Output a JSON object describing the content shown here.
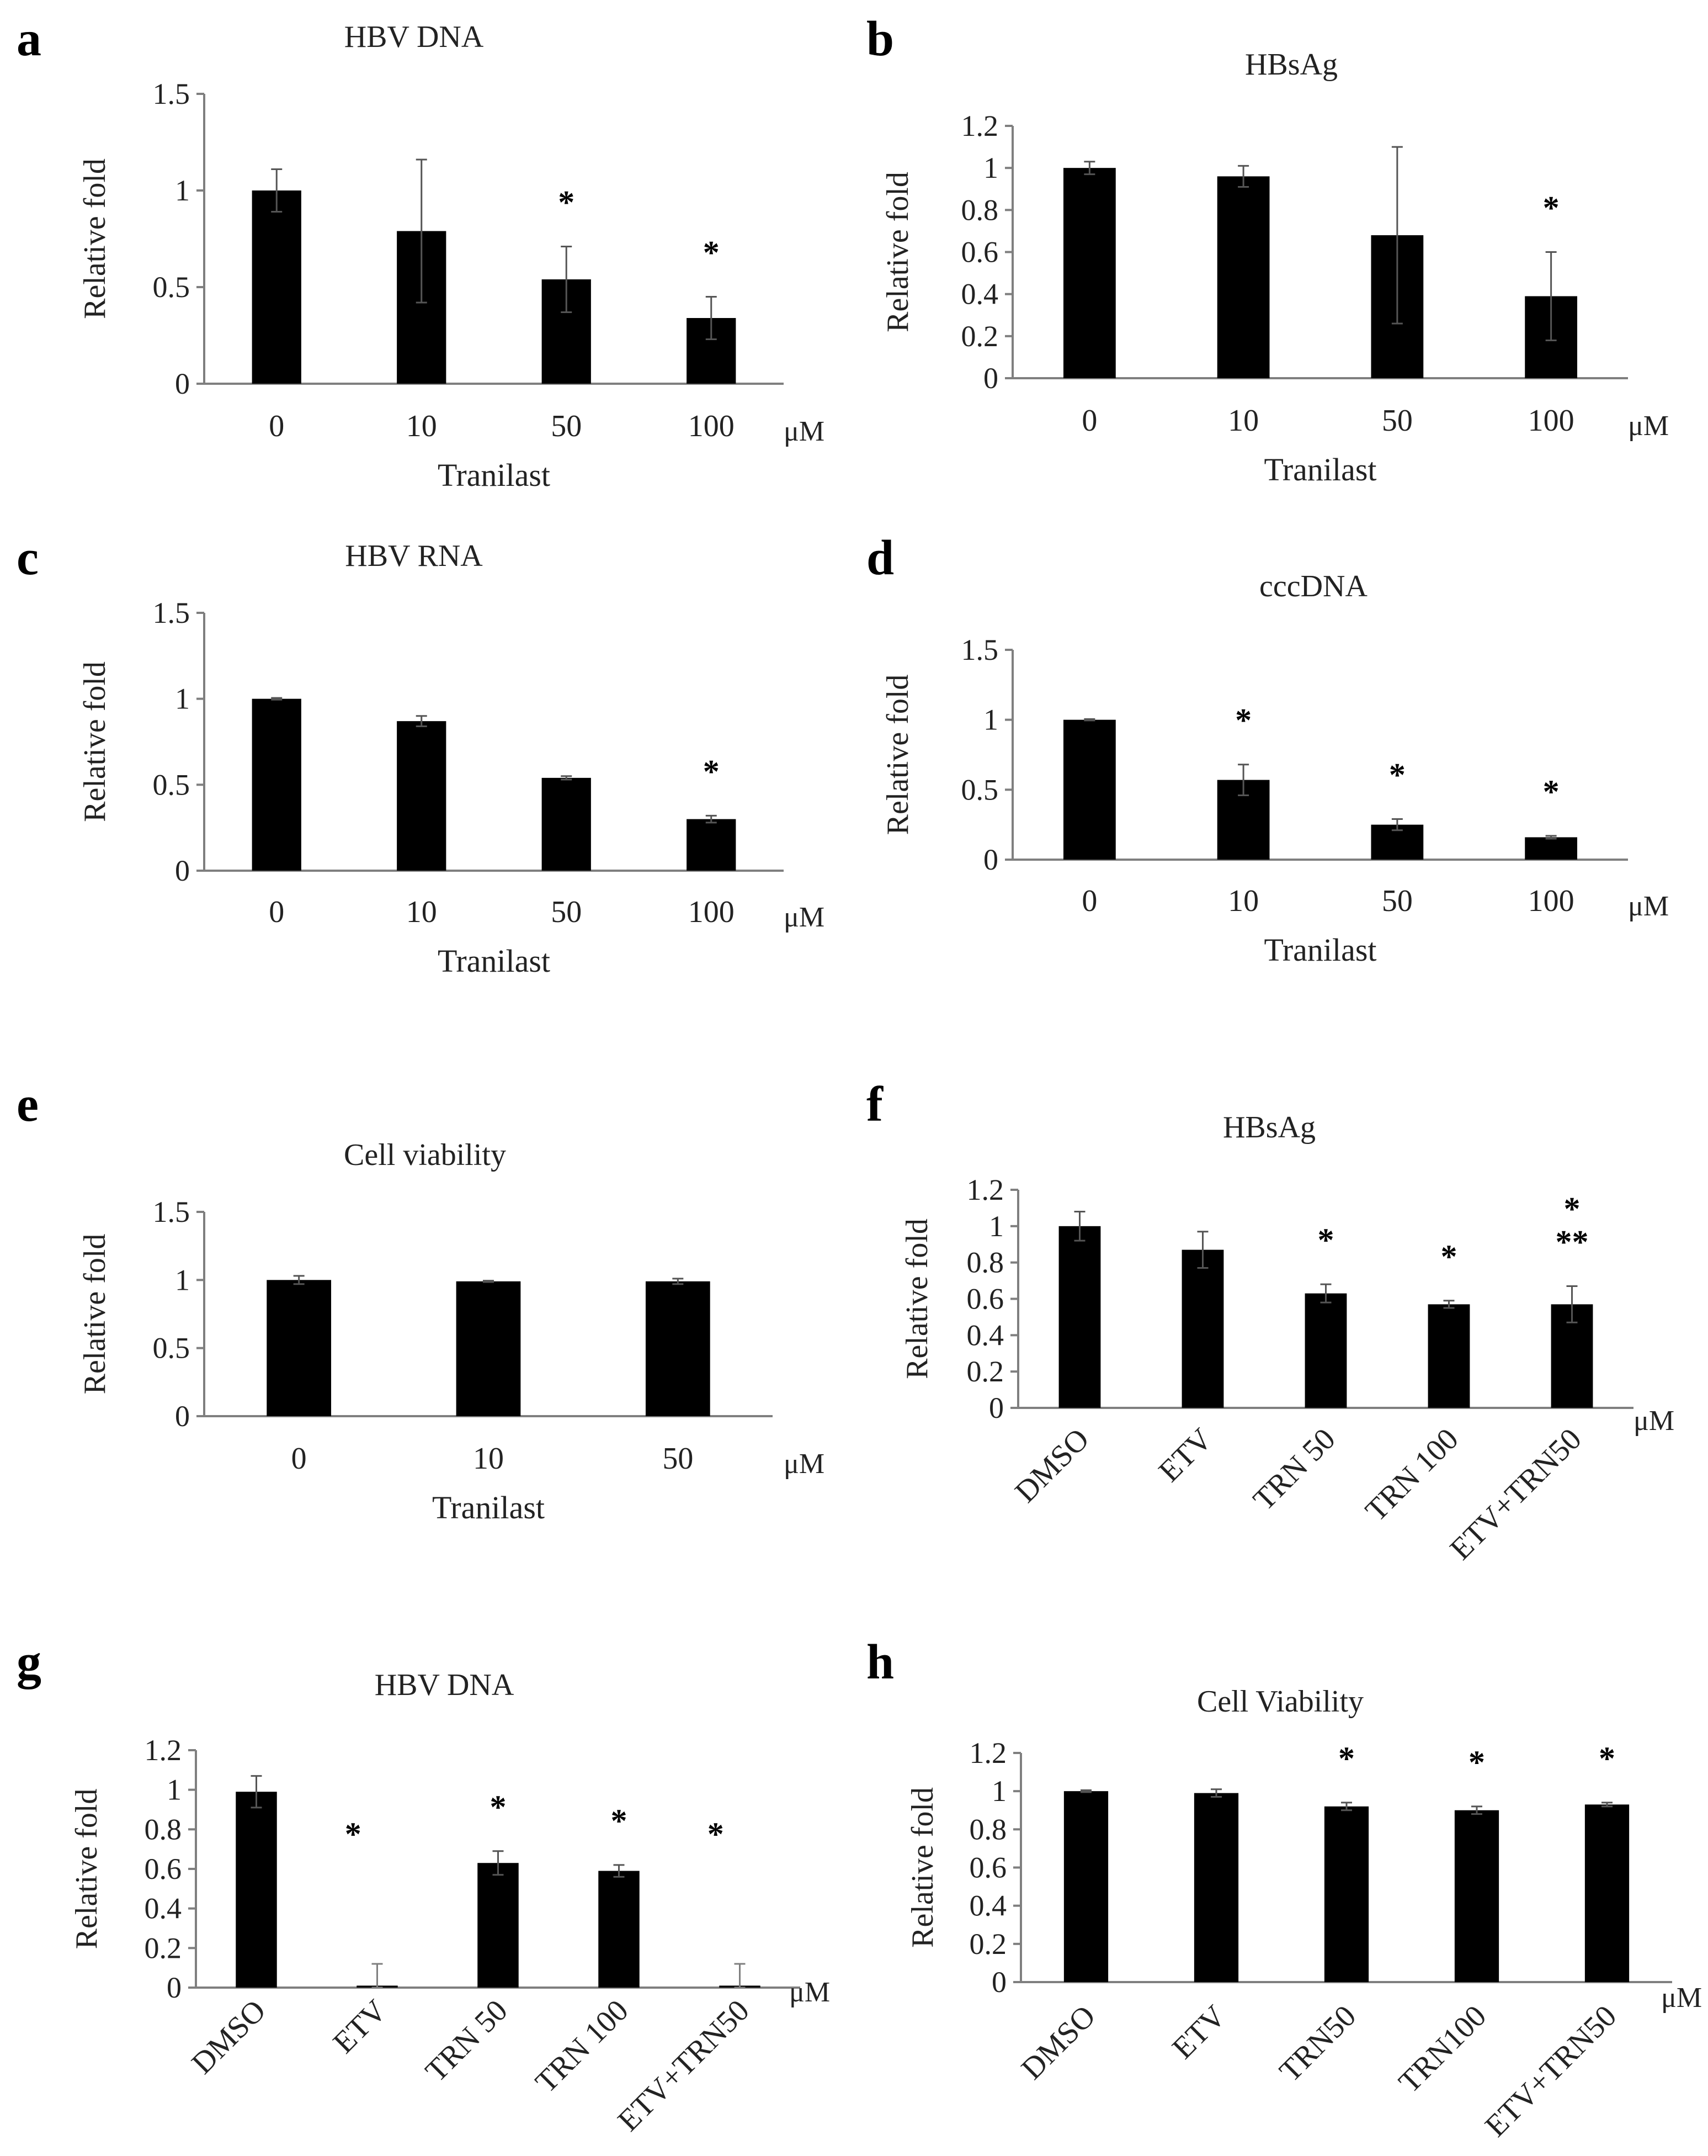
{
  "colors": {
    "bar": "#000000",
    "axis": "#7f7f7f",
    "text": "#222222"
  },
  "chart_data": [
    {
      "panel": "a",
      "type": "bar",
      "title": "HBV DNA",
      "ylabel": "Relative fold",
      "xlabel": "Tranilast",
      "unit": "μM",
      "categories": [
        "0",
        "10",
        "50",
        "100"
      ],
      "values": [
        1.0,
        0.79,
        0.54,
        0.34
      ],
      "errors": [
        0.11,
        0.37,
        0.17,
        0.11
      ],
      "significance": [
        "",
        "",
        "*",
        "*"
      ],
      "ylim": [
        0,
        1.5
      ],
      "yticks": [
        0,
        0.5,
        1,
        1.5
      ],
      "ytick_labels": [
        "0",
        "0.5",
        "1",
        "1.5"
      ]
    },
    {
      "panel": "b",
      "type": "bar",
      "title": "HBsAg",
      "ylabel": "Relative fold",
      "xlabel": "Tranilast",
      "unit": "μM",
      "categories": [
        "0",
        "10",
        "50",
        "100"
      ],
      "values": [
        1.0,
        0.96,
        0.68,
        0.39
      ],
      "errors": [
        0.03,
        0.05,
        0.42,
        0.21
      ],
      "significance": [
        "",
        "",
        "",
        "*"
      ],
      "ylim": [
        0,
        1.2
      ],
      "yticks": [
        0,
        0.2,
        0.4,
        0.6,
        0.8,
        1,
        1.2
      ],
      "ytick_labels": [
        "0",
        "0.2",
        "0.4",
        "0.6",
        "0.8",
        "1",
        "1.2"
      ]
    },
    {
      "panel": "c",
      "type": "bar",
      "title": "HBV RNA",
      "ylabel": "Relative fold",
      "xlabel": "Tranilast",
      "unit": "μM",
      "categories": [
        "0",
        "10",
        "50",
        "100"
      ],
      "values": [
        1.0,
        0.87,
        0.54,
        0.3
      ],
      "errors": [
        0.005,
        0.03,
        0.01,
        0.02
      ],
      "significance": [
        "",
        "",
        "",
        "*"
      ],
      "ylim": [
        0,
        1.5
      ],
      "yticks": [
        0,
        0.5,
        1,
        1.5
      ],
      "ytick_labels": [
        "0",
        "0.5",
        "1",
        "1.5"
      ]
    },
    {
      "panel": "d",
      "type": "bar",
      "title": "cccDNA",
      "ylabel": "Relative fold",
      "xlabel": "Tranilast",
      "unit": "μM",
      "categories": [
        "0",
        "10",
        "50",
        "100"
      ],
      "values": [
        1.0,
        0.57,
        0.25,
        0.16
      ],
      "errors": [
        0.005,
        0.11,
        0.04,
        0.01
      ],
      "significance": [
        "",
        "*",
        "*",
        "*"
      ],
      "ylim": [
        0,
        1.5
      ],
      "yticks": [
        0,
        0.5,
        1,
        1.5
      ],
      "ytick_labels": [
        "0",
        "0.5",
        "1",
        "1.5"
      ]
    },
    {
      "panel": "e",
      "type": "bar",
      "title": "Cell viability",
      "ylabel": "Relative fold",
      "xlabel": "Tranilast",
      "unit": "μM",
      "categories": [
        "0",
        "10",
        "50"
      ],
      "values": [
        1.0,
        0.99,
        0.99
      ],
      "errors": [
        0.03,
        0.005,
        0.02
      ],
      "significance": [
        "",
        "",
        ""
      ],
      "ylim": [
        0,
        1.5
      ],
      "yticks": [
        0,
        0.5,
        1,
        1.5
      ],
      "ytick_labels": [
        "0",
        "0.5",
        "1",
        "1.5"
      ]
    },
    {
      "panel": "f",
      "type": "bar",
      "title": "HBsAg",
      "ylabel": "Relative fold",
      "xlabel": "",
      "unit": "μM",
      "categories": [
        "DMSO",
        "ETV",
        "TRN 50",
        "TRN 100",
        "ETV+TRN50"
      ],
      "values": [
        1.0,
        0.87,
        0.63,
        0.57,
        0.57
      ],
      "errors": [
        0.08,
        0.1,
        0.05,
        0.02,
        0.1
      ],
      "significance": [
        "",
        "",
        "*",
        "*",
        "*\n**"
      ],
      "ylim": [
        0,
        1.2
      ],
      "yticks": [
        0,
        0.2,
        0.4,
        0.6,
        0.8,
        1,
        1.2
      ],
      "ytick_labels": [
        "0",
        "0.2",
        "0.4",
        "0.6",
        "0.8",
        "1",
        "1.2"
      ]
    },
    {
      "panel": "g",
      "type": "bar",
      "title": "HBV DNA",
      "ylabel": "Relative fold",
      "xlabel": "",
      "unit": "μM",
      "categories": [
        "DMSO",
        "ETV",
        "TRN 50",
        "TRN 100",
        "ETV+TRN50"
      ],
      "values": [
        0.99,
        0.01,
        0.63,
        0.59,
        0.01
      ],
      "errors": [
        0.08,
        0.11,
        0.06,
        0.03,
        0.11
      ],
      "significance": [
        "",
        "*",
        "*",
        "*",
        "*"
      ],
      "ylim": [
        0,
        1.2
      ],
      "yticks": [
        0,
        0.2,
        0.4,
        0.6,
        0.8,
        1,
        1.2
      ],
      "ytick_labels": [
        "0",
        "0.2",
        "0.4",
        "0.6",
        "0.8",
        "1",
        "1.2"
      ]
    },
    {
      "panel": "h",
      "type": "bar",
      "title": "Cell Viability",
      "ylabel": "Relative fold",
      "xlabel": "",
      "unit": "μM",
      "categories": [
        "DMSO",
        "ETV",
        "TRN50",
        "TRN100",
        "ETV+TRN50"
      ],
      "values": [
        1.0,
        0.99,
        0.92,
        0.9,
        0.93
      ],
      "errors": [
        0.005,
        0.02,
        0.02,
        0.02,
        0.01
      ],
      "significance": [
        "",
        "",
        "*",
        "*",
        "*"
      ],
      "ylim": [
        0,
        1.2
      ],
      "yticks": [
        0,
        0.2,
        0.4,
        0.6,
        0.8,
        1,
        1.2
      ],
      "ytick_labels": [
        "0",
        "0.2",
        "0.4",
        "0.6",
        "0.8",
        "1",
        "1.2"
      ]
    }
  ]
}
